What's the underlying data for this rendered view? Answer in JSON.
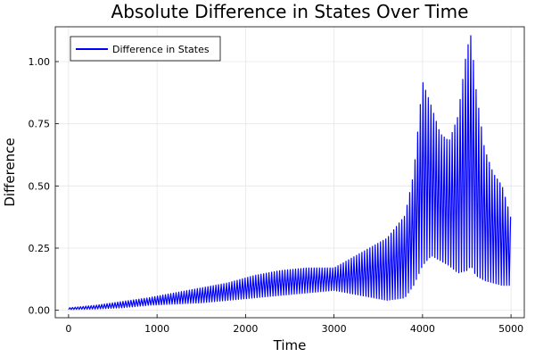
{
  "chart_data": {
    "type": "line",
    "title": "Absolute Difference in States Over Time",
    "xlabel": "Time",
    "ylabel": "Difference",
    "xlim": [
      -150,
      5150
    ],
    "ylim": [
      -0.03,
      1.14
    ],
    "xticks": [
      0,
      1000,
      2000,
      3000,
      4000,
      5000
    ],
    "xtick_labels": [
      "0",
      "1000",
      "2000",
      "3000",
      "4000",
      "5000"
    ],
    "yticks": [
      0,
      0.25,
      0.5,
      0.75,
      1.0
    ],
    "ytick_labels": [
      "0.00",
      "0.25",
      "0.50",
      "0.75",
      "1.00"
    ],
    "grid": true,
    "legend_position": "top-left",
    "series": [
      {
        "name": "Difference in States",
        "color": "#0000ff",
        "oscillation_period": 30,
        "envelope_upper": {
          "x": [
            0,
            300,
            600,
            900,
            1200,
            1500,
            1800,
            2100,
            2400,
            2700,
            3000,
            3300,
            3600,
            3800,
            3900,
            4000,
            4100,
            4200,
            4300,
            4400,
            4500,
            4550,
            4600,
            4700,
            4800,
            4900,
            5000
          ],
          "y": [
            0.01,
            0.02,
            0.035,
            0.05,
            0.07,
            0.09,
            0.11,
            0.14,
            0.16,
            0.17,
            0.17,
            0.23,
            0.29,
            0.38,
            0.55,
            0.92,
            0.82,
            0.71,
            0.68,
            0.78,
            1.05,
            1.11,
            0.9,
            0.65,
            0.55,
            0.5,
            0.37
          ]
        },
        "envelope_lower": {
          "x": [
            0,
            300,
            600,
            900,
            1200,
            1500,
            1800,
            2100,
            2400,
            2700,
            3000,
            3300,
            3600,
            3800,
            3900,
            4000,
            4100,
            4200,
            4300,
            4400,
            4500,
            4550,
            4600,
            4700,
            4800,
            4900,
            5000
          ],
          "y": [
            0.003,
            0.005,
            0.01,
            0.02,
            0.025,
            0.03,
            0.04,
            0.05,
            0.06,
            0.07,
            0.08,
            0.06,
            0.04,
            0.05,
            0.1,
            0.18,
            0.22,
            0.2,
            0.18,
            0.15,
            0.16,
            0.18,
            0.14,
            0.12,
            0.11,
            0.1,
            0.1
          ]
        }
      }
    ]
  }
}
